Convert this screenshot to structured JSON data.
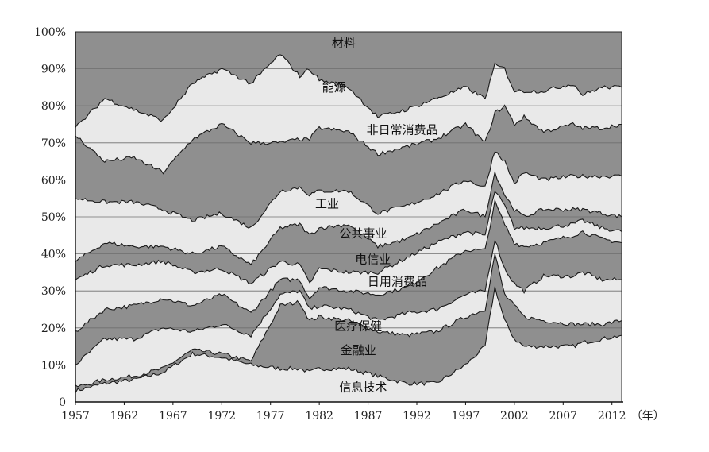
{
  "chart_data": {
    "type": "area",
    "stacked": true,
    "normalized": true,
    "xlabel": "",
    "x_unit_label": "（年）",
    "ylabel": "",
    "xlim": [
      1957,
      2013
    ],
    "ylim": [
      0,
      100
    ],
    "x_ticks": [
      1957,
      1962,
      1967,
      1972,
      1977,
      1982,
      1987,
      1992,
      1997,
      2002,
      2007,
      2012
    ],
    "y_ticks": [
      "0",
      "10%",
      "20%",
      "30%",
      "40%",
      "50%",
      "60%",
      "70%",
      "80%",
      "90%",
      "100%"
    ],
    "grid": "horizontal",
    "colors": {
      "shaded": "#8f8f8f",
      "light": "#e9e9e9",
      "line": "#1a1a1a"
    },
    "x": [
      1957,
      1960,
      1963,
      1966,
      1969,
      1972,
      1975,
      1978,
      1980,
      1981,
      1982,
      1985,
      1988,
      1991,
      1994,
      1997,
      1999,
      2000,
      2001,
      2002,
      2003,
      2005,
      2008,
      2009,
      2011,
      2013
    ],
    "series": [
      {
        "name": "信息技术",
        "values": [
          3,
          5,
          6,
          8,
          13,
          12,
          10,
          9,
          9,
          8,
          9,
          9,
          7,
          5,
          5,
          10,
          15,
          31,
          22,
          17,
          15,
          15,
          15,
          16,
          17,
          18
        ]
      },
      {
        "name": "金融业",
        "values": [
          1,
          1,
          1,
          1,
          1,
          1,
          1,
          17,
          18,
          14,
          14,
          13,
          12,
          13,
          14,
          13,
          10,
          9,
          7,
          9,
          8,
          7,
          6,
          5,
          4,
          4
        ]
      },
      {
        "name": "医疗保健",
        "values": [
          6,
          11,
          10,
          11,
          5,
          8,
          7,
          3,
          3,
          3,
          3,
          3,
          3,
          6,
          6,
          6,
          5,
          4,
          7,
          6,
          7,
          12,
          13,
          14,
          12,
          11
        ]
      },
      {
        "name": "日用消费品",
        "values": [
          9,
          8,
          9,
          8,
          7,
          8,
          6,
          4,
          3,
          3,
          5,
          5,
          7,
          7,
          11,
          12,
          11,
          10,
          12,
          11,
          12,
          9,
          11,
          11,
          11,
          10
        ]
      },
      {
        "name": "电信业",
        "values": [
          14,
          12,
          11,
          10,
          9,
          7,
          8,
          5,
          4,
          4,
          5,
          5,
          6,
          8,
          7,
          5,
          4,
          3,
          5,
          4,
          5,
          4,
          3,
          3,
          3,
          3
        ]
      },
      {
        "name": "公共事业",
        "values": [
          5,
          6,
          5,
          4,
          5,
          6,
          5,
          9,
          11,
          13,
          11,
          13,
          7,
          5,
          5,
          6,
          5,
          5,
          3,
          5,
          3,
          5,
          4,
          3,
          4,
          4
        ]
      },
      {
        "name": "工业",
        "values": [
          17,
          11,
          12,
          10,
          9,
          9,
          10,
          10,
          10,
          11,
          10,
          9,
          9,
          9,
          8,
          8,
          8,
          6,
          9,
          7,
          12,
          8,
          9,
          9,
          10,
          11
        ]
      },
      {
        "name": "非日常消费品",
        "values": [
          17,
          11,
          12,
          10,
          22,
          24,
          23,
          13,
          13,
          15,
          17,
          16,
          16,
          16,
          15,
          15,
          12,
          10,
          15,
          16,
          15,
          13,
          14,
          13,
          13,
          14
        ]
      },
      {
        "name": "能源",
        "values": [
          2,
          17,
          13,
          14,
          15,
          15,
          16,
          24,
          17,
          19,
          13,
          12,
          10,
          10,
          11,
          10,
          12,
          13,
          10,
          9,
          7,
          11,
          11,
          9,
          11,
          10
        ]
      },
      {
        "name": "材料",
        "values": [
          26,
          18,
          21,
          24,
          14,
          10,
          14,
          6,
          12,
          10,
          13,
          15,
          23,
          21,
          18,
          15,
          18,
          9,
          10,
          16,
          16,
          16,
          14,
          17,
          15,
          15
        ]
      }
    ],
    "label_positions": [
      {
        "name": "信息技术",
        "year": 1986.5,
        "value": 4
      },
      {
        "name": "金融业",
        "year": 1986,
        "value": 14
      },
      {
        "name": "医疗保健",
        "year": 1986,
        "value": 20.5
      },
      {
        "name": "日用消费品",
        "year": 1990,
        "value": 32.5
      },
      {
        "name": "电信业",
        "year": 1987.5,
        "value": 38.5
      },
      {
        "name": "公共事业",
        "year": 1986.5,
        "value": 45.5
      },
      {
        "name": "工业",
        "year": 1982.8,
        "value": 53.5
      },
      {
        "name": "非日常消费品",
        "year": 1990.5,
        "value": 73.5
      },
      {
        "name": "能源",
        "year": 1983.5,
        "value": 85
      },
      {
        "name": "材料",
        "year": 1984.5,
        "value": 97
      }
    ]
  }
}
